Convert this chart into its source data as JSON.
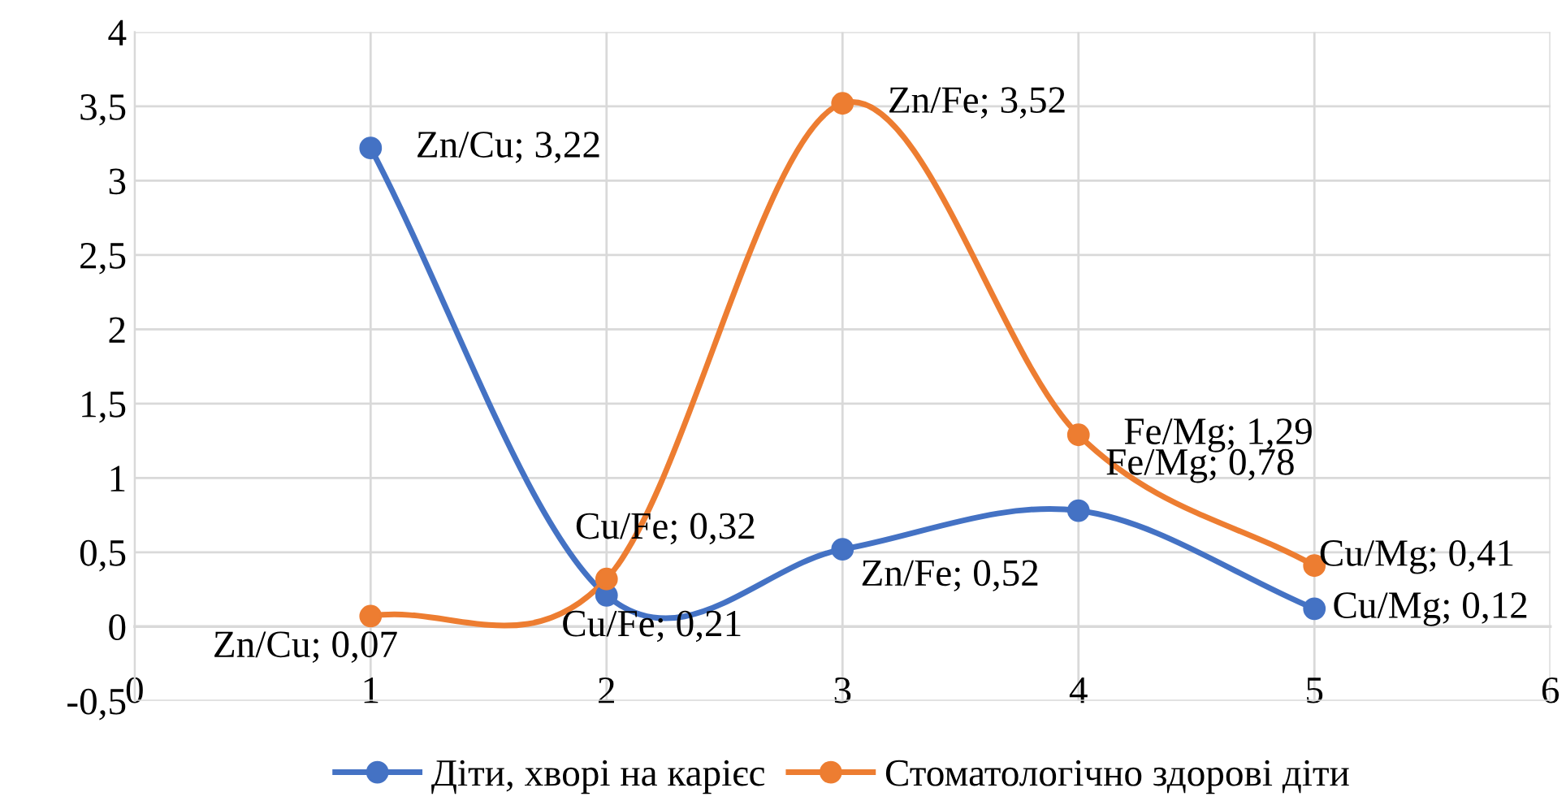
{
  "chart_data": {
    "type": "line",
    "x": [
      1,
      2,
      3,
      4,
      5
    ],
    "series": [
      {
        "name": "Діти, хворі на карієс",
        "color": "#4472c4",
        "values": [
          3.22,
          0.21,
          0.52,
          0.78,
          0.12
        ]
      },
      {
        "name": "Стоматологічно здорові діти",
        "color": "#ed7d31",
        "values": [
          0.07,
          0.32,
          3.52,
          1.29,
          0.41
        ]
      }
    ],
    "xlim": [
      0,
      6
    ],
    "xticks": [
      0,
      1,
      2,
      3,
      4,
      5,
      6
    ],
    "ylim": [
      -0.5,
      4
    ],
    "yticks": [
      {
        "value": -0.5,
        "label": "-0,5"
      },
      0,
      {
        "value": 0.5,
        "label": "0,5"
      },
      1,
      {
        "value": 1.5,
        "label": "1,5"
      },
      2,
      {
        "value": 2.5,
        "label": "2,5"
      },
      3,
      {
        "value": 3.5,
        "label": "3,5"
      },
      4
    ],
    "grid": true,
    "legend": "bottom",
    "marker": "circle",
    "line_style": "solid",
    "annotations": [
      {
        "text": "Zn/Cu; 3,22",
        "x": 1,
        "y": 3.22
      },
      {
        "text": "Cu/Fe; 0,21",
        "x": 2,
        "y": 0.21
      },
      {
        "text": "Zn/Fe; 0,52",
        "x": 3,
        "y": 0.52
      },
      {
        "text": "Fe/Mg; 0,78",
        "x": 4,
        "y": 0.78
      },
      {
        "text": "Cu/Mg; 0,12",
        "x": 5,
        "y": 0.12
      },
      {
        "text": "Zn/Cu; 0,07",
        "x": 1,
        "y": 0.07
      },
      {
        "text": "Cu/Fe; 0,32",
        "x": 2,
        "y": 0.32
      },
      {
        "text": "Zn/Fe; 3,52",
        "x": 3,
        "y": 3.52
      },
      {
        "text": "Fe/Mg; 1,29",
        "x": 4,
        "y": 1.29
      },
      {
        "text": "Cu/Mg; 0,41",
        "x": 5,
        "y": 0.41
      }
    ]
  }
}
